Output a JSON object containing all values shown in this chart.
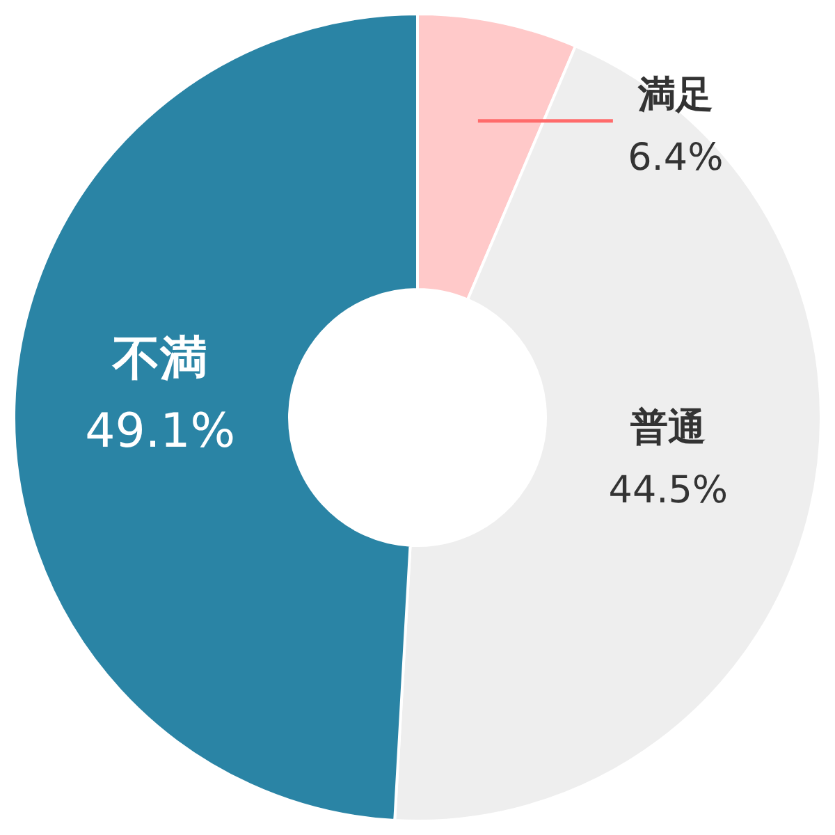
{
  "chart_data": {
    "type": "donut",
    "categories": [
      "満足",
      "普通",
      "不満"
    ],
    "values": [
      6.4,
      44.5,
      49.1
    ],
    "value_labels": [
      "6.4%",
      "44.5%",
      "49.1%"
    ],
    "colors": [
      "#ffc9c9",
      "#eeeeee",
      "#2a84a5"
    ]
  }
}
